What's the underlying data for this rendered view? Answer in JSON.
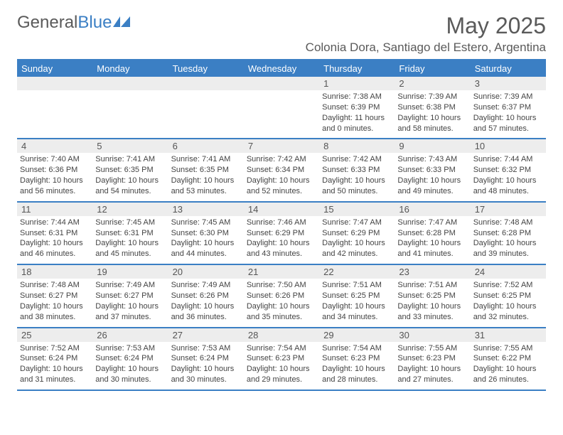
{
  "brand": {
    "word1": "General",
    "word2": "Blue"
  },
  "title": "May 2025",
  "location": "Colonia Dora, Santiago del Estero, Argentina",
  "colors": {
    "accent": "#3b7fc4",
    "header_text": "#ffffff",
    "daynum_bg": "#ededed",
    "text": "#444444",
    "title_color": "#5a5a5a"
  },
  "day_labels": [
    "Sunday",
    "Monday",
    "Tuesday",
    "Wednesday",
    "Thursday",
    "Friday",
    "Saturday"
  ],
  "weeks": [
    [
      null,
      null,
      null,
      null,
      {
        "n": "1",
        "sr": "7:38 AM",
        "ss": "6:39 PM",
        "dl": "11 hours and 0 minutes."
      },
      {
        "n": "2",
        "sr": "7:39 AM",
        "ss": "6:38 PM",
        "dl": "10 hours and 58 minutes."
      },
      {
        "n": "3",
        "sr": "7:39 AM",
        "ss": "6:37 PM",
        "dl": "10 hours and 57 minutes."
      }
    ],
    [
      {
        "n": "4",
        "sr": "7:40 AM",
        "ss": "6:36 PM",
        "dl": "10 hours and 56 minutes."
      },
      {
        "n": "5",
        "sr": "7:41 AM",
        "ss": "6:35 PM",
        "dl": "10 hours and 54 minutes."
      },
      {
        "n": "6",
        "sr": "7:41 AM",
        "ss": "6:35 PM",
        "dl": "10 hours and 53 minutes."
      },
      {
        "n": "7",
        "sr": "7:42 AM",
        "ss": "6:34 PM",
        "dl": "10 hours and 52 minutes."
      },
      {
        "n": "8",
        "sr": "7:42 AM",
        "ss": "6:33 PM",
        "dl": "10 hours and 50 minutes."
      },
      {
        "n": "9",
        "sr": "7:43 AM",
        "ss": "6:33 PM",
        "dl": "10 hours and 49 minutes."
      },
      {
        "n": "10",
        "sr": "7:44 AM",
        "ss": "6:32 PM",
        "dl": "10 hours and 48 minutes."
      }
    ],
    [
      {
        "n": "11",
        "sr": "7:44 AM",
        "ss": "6:31 PM",
        "dl": "10 hours and 46 minutes."
      },
      {
        "n": "12",
        "sr": "7:45 AM",
        "ss": "6:31 PM",
        "dl": "10 hours and 45 minutes."
      },
      {
        "n": "13",
        "sr": "7:45 AM",
        "ss": "6:30 PM",
        "dl": "10 hours and 44 minutes."
      },
      {
        "n": "14",
        "sr": "7:46 AM",
        "ss": "6:29 PM",
        "dl": "10 hours and 43 minutes."
      },
      {
        "n": "15",
        "sr": "7:47 AM",
        "ss": "6:29 PM",
        "dl": "10 hours and 42 minutes."
      },
      {
        "n": "16",
        "sr": "7:47 AM",
        "ss": "6:28 PM",
        "dl": "10 hours and 41 minutes."
      },
      {
        "n": "17",
        "sr": "7:48 AM",
        "ss": "6:28 PM",
        "dl": "10 hours and 39 minutes."
      }
    ],
    [
      {
        "n": "18",
        "sr": "7:48 AM",
        "ss": "6:27 PM",
        "dl": "10 hours and 38 minutes."
      },
      {
        "n": "19",
        "sr": "7:49 AM",
        "ss": "6:27 PM",
        "dl": "10 hours and 37 minutes."
      },
      {
        "n": "20",
        "sr": "7:49 AM",
        "ss": "6:26 PM",
        "dl": "10 hours and 36 minutes."
      },
      {
        "n": "21",
        "sr": "7:50 AM",
        "ss": "6:26 PM",
        "dl": "10 hours and 35 minutes."
      },
      {
        "n": "22",
        "sr": "7:51 AM",
        "ss": "6:25 PM",
        "dl": "10 hours and 34 minutes."
      },
      {
        "n": "23",
        "sr": "7:51 AM",
        "ss": "6:25 PM",
        "dl": "10 hours and 33 minutes."
      },
      {
        "n": "24",
        "sr": "7:52 AM",
        "ss": "6:25 PM",
        "dl": "10 hours and 32 minutes."
      }
    ],
    [
      {
        "n": "25",
        "sr": "7:52 AM",
        "ss": "6:24 PM",
        "dl": "10 hours and 31 minutes."
      },
      {
        "n": "26",
        "sr": "7:53 AM",
        "ss": "6:24 PM",
        "dl": "10 hours and 30 minutes."
      },
      {
        "n": "27",
        "sr": "7:53 AM",
        "ss": "6:24 PM",
        "dl": "10 hours and 30 minutes."
      },
      {
        "n": "28",
        "sr": "7:54 AM",
        "ss": "6:23 PM",
        "dl": "10 hours and 29 minutes."
      },
      {
        "n": "29",
        "sr": "7:54 AM",
        "ss": "6:23 PM",
        "dl": "10 hours and 28 minutes."
      },
      {
        "n": "30",
        "sr": "7:55 AM",
        "ss": "6:23 PM",
        "dl": "10 hours and 27 minutes."
      },
      {
        "n": "31",
        "sr": "7:55 AM",
        "ss": "6:22 PM",
        "dl": "10 hours and 26 minutes."
      }
    ]
  ],
  "labels": {
    "sunrise": "Sunrise: ",
    "sunset": "Sunset: ",
    "daylight": "Daylight: "
  }
}
